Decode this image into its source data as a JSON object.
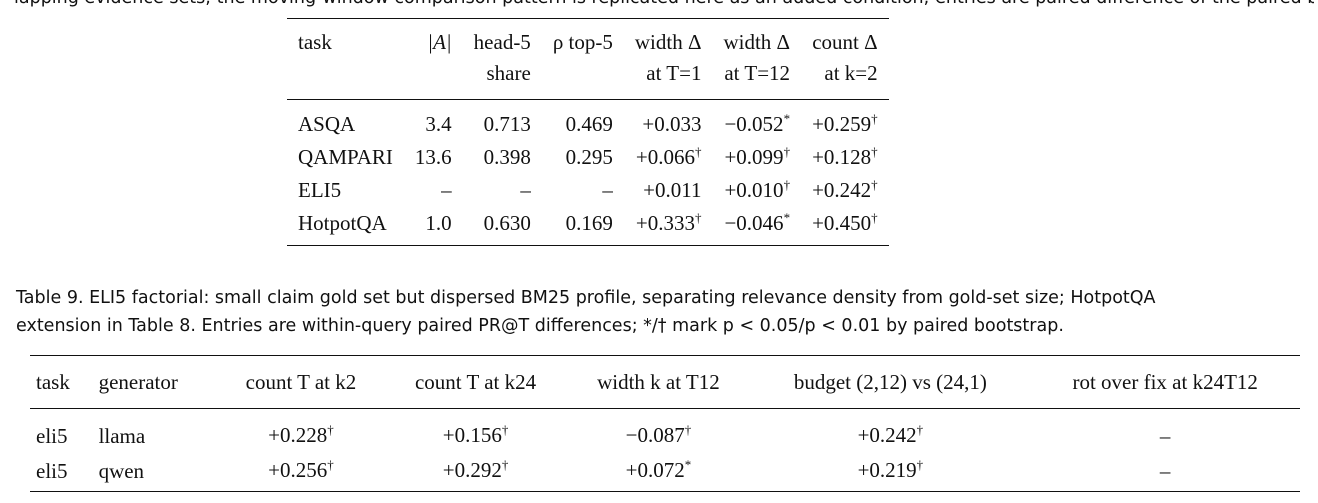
{
  "top_fragment": "lapping evidence sets; the moving-window comparison pattern is replicated here as an added condition; entries are paired difference of the paired bootstrap.",
  "table8": {
    "headers": [
      {
        "a": "task",
        "b": ""
      },
      {
        "a": "|A|",
        "b": ""
      },
      {
        "a": "head-5",
        "b": "share"
      },
      {
        "a": "ρ top-5",
        "b": ""
      },
      {
        "a": "width Δ",
        "b": "at T=1"
      },
      {
        "a": "width Δ",
        "b": "at T=12"
      },
      {
        "a": "count Δ",
        "b": "at k=2"
      }
    ],
    "rows": [
      {
        "task": "ASQA",
        "A": "3.4",
        "head5": "0.713",
        "rho": "0.469",
        "w1": "+0.033",
        "w1_mark": "",
        "w12": "−0.052",
        "w12_mark": "*",
        "c2": "+0.259",
        "c2_mark": "†"
      },
      {
        "task": "QAMPARI",
        "A": "13.6",
        "head5": "0.398",
        "rho": "0.295",
        "w1": "+0.066",
        "w1_mark": "†",
        "w12": "+0.099",
        "w12_mark": "†",
        "c2": "+0.128",
        "c2_mark": "†"
      },
      {
        "task": "ELI5",
        "A": "–",
        "head5": "–",
        "rho": "–",
        "w1": "+0.011",
        "w1_mark": "",
        "w12": "+0.010",
        "w12_mark": "†",
        "c2": "+0.242",
        "c2_mark": "†"
      },
      {
        "task": "HotpotQA",
        "A": "1.0",
        "head5": "0.630",
        "rho": "0.169",
        "w1": "+0.333",
        "w1_mark": "†",
        "w12": "−0.046",
        "w12_mark": "*",
        "c2": "+0.450",
        "c2_mark": "†"
      }
    ]
  },
  "caption": {
    "line1": "Table 9.  ELI5 factorial: small claim gold set but dispersed BM25 profile, separating relevance density from gold-set size; HotpotQA",
    "line2": "extension in Table 8. Entries are within-query paired PR@T differences; */† mark p < 0.05/p < 0.01 by paired bootstrap."
  },
  "table9": {
    "headers": [
      "task",
      "generator",
      "count T at k2",
      "count T at k24",
      "width k at T12",
      "budget (2,12) vs (24,1)",
      "rot over fix at k24T12"
    ],
    "rows": [
      {
        "task": "eli5",
        "gen": "llama",
        "ck2": "+0.228",
        "ck2_mark": "†",
        "ck24": "+0.156",
        "ck24_mark": "†",
        "wk": "−0.087",
        "wk_mark": "†",
        "budget": "+0.242",
        "budget_mark": "†",
        "rot": "–"
      },
      {
        "task": "eli5",
        "gen": "qwen",
        "ck2": "+0.256",
        "ck2_mark": "†",
        "ck24": "+0.292",
        "ck24_mark": "†",
        "wk": "+0.072",
        "wk_mark": "*",
        "budget": "+0.219",
        "budget_mark": "†",
        "rot": "–"
      }
    ]
  }
}
